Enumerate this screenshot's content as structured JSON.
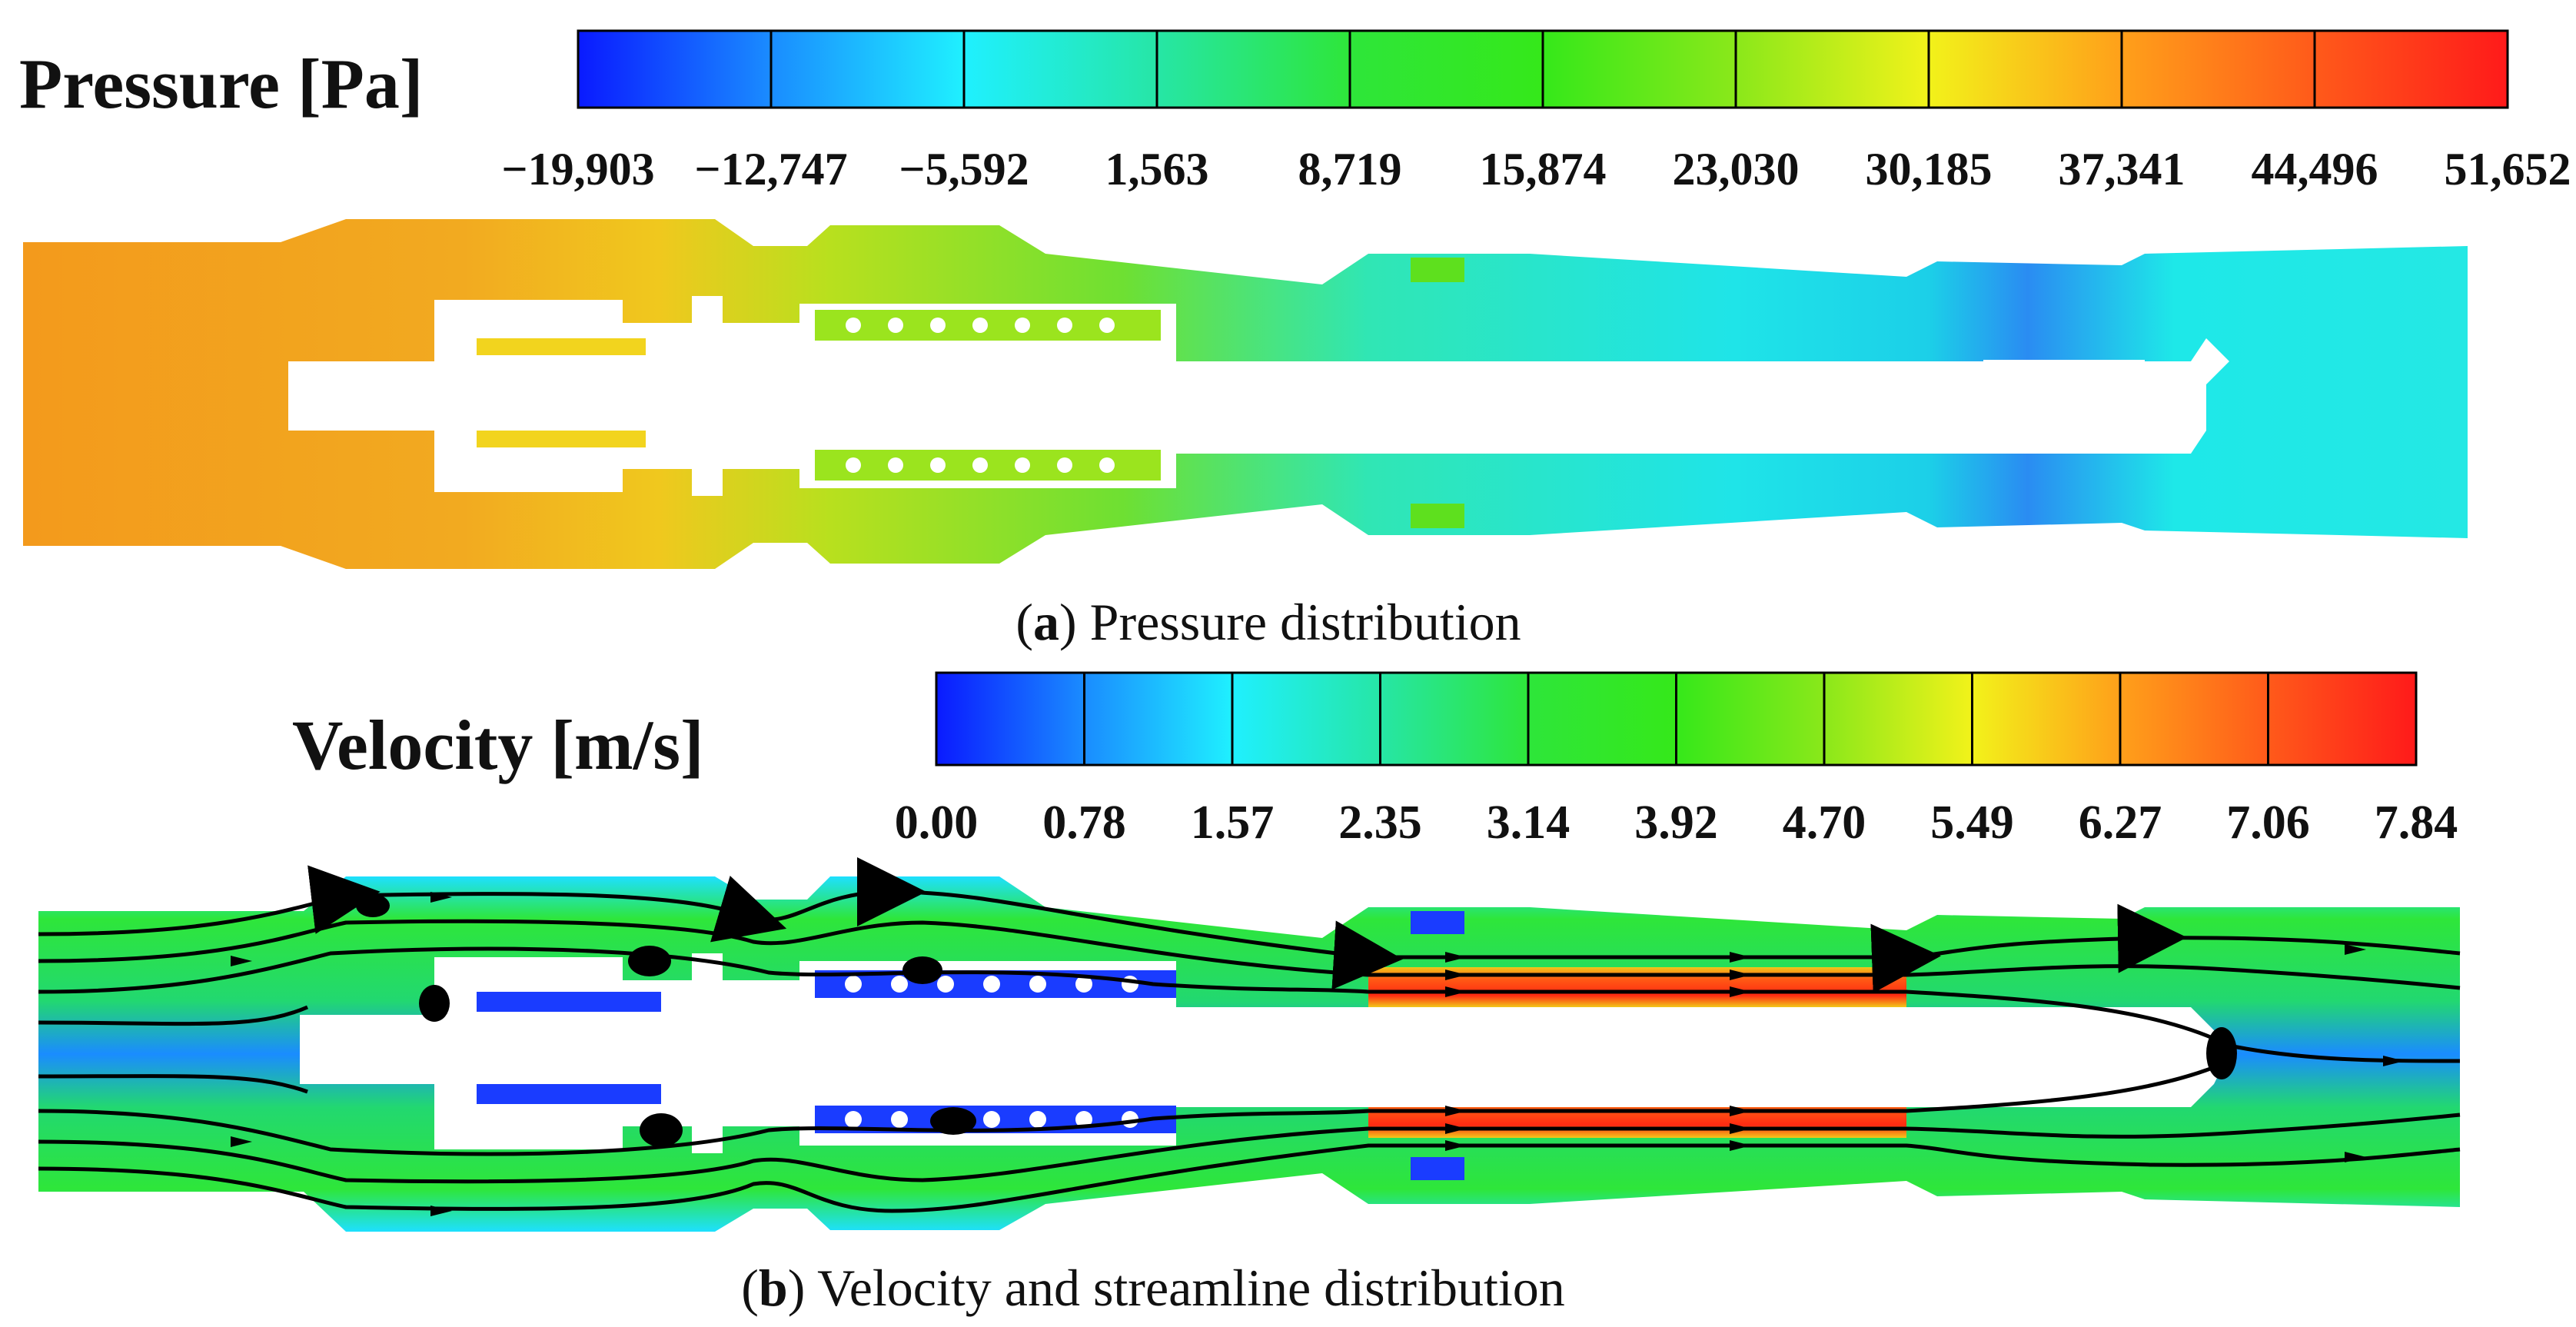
{
  "panel_a": {
    "legend_title": "Pressure [Pa]",
    "ticks": [
      "−19,903",
      "−12,747",
      "−5,592",
      "1,563",
      "8,719",
      "15,874",
      "23,030",
      "30,185",
      "37,341",
      "44,496",
      "51,652"
    ],
    "caption_letter": "a",
    "caption_text": "Pressure distribution"
  },
  "panel_b": {
    "legend_title": "Velocity [m/s]",
    "ticks": [
      "0.00",
      "0.78",
      "1.57",
      "2.35",
      "3.14",
      "3.92",
      "4.70",
      "5.49",
      "6.27",
      "7.06",
      "7.84"
    ],
    "caption_letter": "b",
    "caption_text": "Velocity and streamline distribution"
  },
  "colormap": {
    "stops": [
      "#0a1aff",
      "#1a8cff",
      "#1ff0ff",
      "#26e6a6",
      "#2ee63a",
      "#35e81a",
      "#8ae81a",
      "#f2f21a",
      "#ffa01a",
      "#ff5a1a",
      "#ff1a1a"
    ]
  },
  "fluid_colors": {
    "pressure_inlet": "#f2a21e",
    "pressure_body": "#f2c21e",
    "pressure_mid": "#8ee020",
    "pressure_outlet": "#26e0f2",
    "velocity_jet": "#ff3a14",
    "velocity_low": "#1a3cff",
    "velocity_channel": "#2ee63a",
    "solid": "#ffffff",
    "streamline": "#000000"
  }
}
